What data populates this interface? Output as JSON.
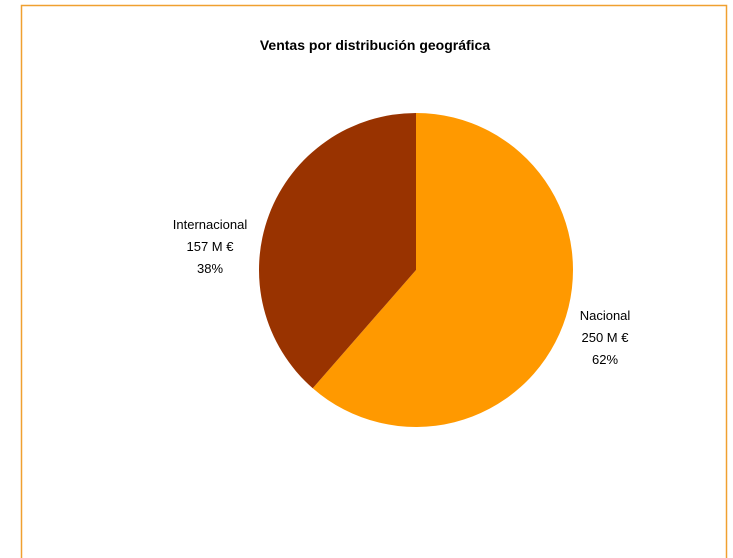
{
  "chart_data": {
    "type": "pie",
    "title": "Ventas  por distribución geográfica",
    "categories": [
      "Nacional",
      "Internacional"
    ],
    "values": [
      250,
      157
    ],
    "value_labels": [
      "250 M €",
      "157 M €"
    ],
    "percent_labels": [
      "62%",
      "38%"
    ],
    "colors": [
      "#ff9900",
      "#993300"
    ]
  }
}
